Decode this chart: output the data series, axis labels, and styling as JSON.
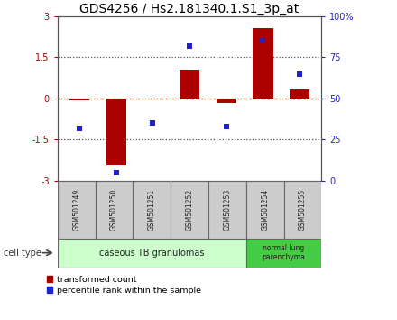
{
  "title": "GDS4256 / Hs2.181340.1.S1_3p_at",
  "samples": [
    "GSM501249",
    "GSM501250",
    "GSM501251",
    "GSM501252",
    "GSM501253",
    "GSM501254",
    "GSM501255"
  ],
  "transformed_counts": [
    -0.07,
    -2.45,
    -0.02,
    1.05,
    -0.18,
    2.55,
    0.32
  ],
  "percentile_ranks": [
    32,
    5,
    35,
    82,
    33,
    85,
    65
  ],
  "ylim_left": [
    -3,
    3
  ],
  "ylim_right": [
    0,
    100
  ],
  "yticks_left": [
    -3,
    -1.5,
    0,
    1.5,
    3
  ],
  "yticks_right": [
    0,
    25,
    50,
    75,
    100
  ],
  "ytick_labels_left": [
    "-3",
    "-1.5",
    "0",
    "1.5",
    "3"
  ],
  "ytick_labels_right": [
    "0",
    "25",
    "50",
    "75",
    "100%"
  ],
  "bar_color": "#aa0000",
  "scatter_color": "#2222cc",
  "hline_color": "#cc0000",
  "dotted_color": "#555555",
  "group1_label": "caseous TB granulomas",
  "group2_label": "normal lung\nparenchyma",
  "group1_indices": [
    0,
    1,
    2,
    3,
    4
  ],
  "group2_indices": [
    5,
    6
  ],
  "group1_bg": "#ccffcc",
  "group2_bg": "#44cc44",
  "sample_bg": "#cccccc",
  "bar_width": 0.55,
  "cell_type_label": "cell type",
  "legend_red_label": "transformed count",
  "legend_blue_label": "percentile rank within the sample",
  "title_fontsize": 10,
  "tick_fontsize": 7,
  "label_fontsize": 7
}
